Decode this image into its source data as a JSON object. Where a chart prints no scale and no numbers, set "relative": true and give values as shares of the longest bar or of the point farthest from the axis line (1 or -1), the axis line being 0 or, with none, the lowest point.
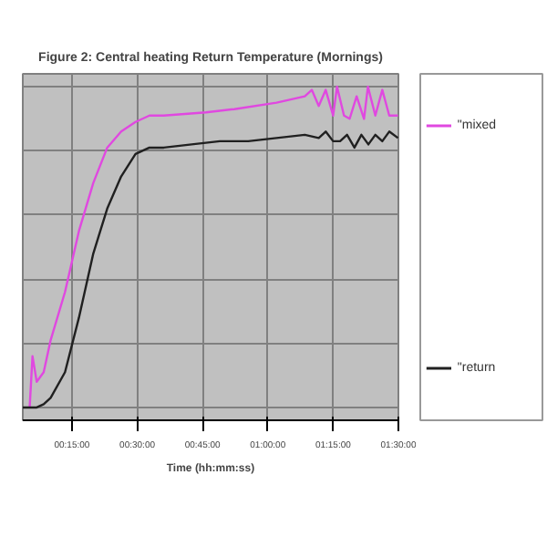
{
  "chart_data": {
    "type": "line",
    "title": "Figure 2: Central heating Return Temperature (Mornings)",
    "xlabel": "Time (hh:mm:ss)",
    "relative": true,
    "xlim": [
      3.7,
      90
    ],
    "xticks": [
      {
        "value": 15,
        "label": "00:15:00"
      },
      {
        "value": 30,
        "label": "00:30:00"
      },
      {
        "value": 45,
        "label": "00:45:00"
      },
      {
        "value": 60,
        "label": "01:00:00"
      },
      {
        "value": 75,
        "label": "01:15:00"
      },
      {
        "value": 90,
        "label": "01:30:00"
      }
    ],
    "grid": true,
    "legend": "right",
    "marker": "none",
    "line_style": "solid",
    "series": [
      {
        "name": "\"mixed",
        "color": "#e048e0",
        "x": [
          5.28,
          5.93,
          6.9,
          8.5,
          10.1,
          13.4,
          16.6,
          19.9,
          23.1,
          26.3,
          29.6,
          32.8,
          36.1,
          45.8,
          52.3,
          62.0,
          68.5,
          70.1,
          71.7,
          73.3,
          75.0,
          75.9,
          77.5,
          78.8,
          80.4,
          82.1,
          83.0,
          84.7,
          86.3,
          87.9,
          89.9
        ],
        "values": [
          0,
          0.16,
          0.08,
          0.11,
          0.21,
          0.36,
          0.55,
          0.7,
          0.81,
          0.86,
          0.89,
          0.91,
          0.91,
          0.92,
          0.93,
          0.95,
          0.97,
          0.99,
          0.94,
          0.99,
          0.91,
          1.0,
          0.91,
          0.9,
          0.97,
          0.9,
          1.0,
          0.91,
          0.99,
          0.91,
          0.91
        ]
      },
      {
        "name": "\"return",
        "color": "#202020",
        "x": [
          3.7,
          6.9,
          8.5,
          10.1,
          13.4,
          16.6,
          19.9,
          23.1,
          26.3,
          29.6,
          32.8,
          36.1,
          42.5,
          49.0,
          55.5,
          62.0,
          68.5,
          71.7,
          73.3,
          75.0,
          76.6,
          78.2,
          79.9,
          81.5,
          83.1,
          84.7,
          86.3,
          87.9,
          89.9
        ],
        "values": [
          0,
          0,
          0.01,
          0.03,
          0.11,
          0.28,
          0.48,
          0.62,
          0.72,
          0.79,
          0.81,
          0.81,
          0.82,
          0.83,
          0.83,
          0.84,
          0.85,
          0.84,
          0.86,
          0.83,
          0.83,
          0.85,
          0.81,
          0.85,
          0.82,
          0.85,
          0.83,
          0.86,
          0.84
        ]
      }
    ]
  }
}
